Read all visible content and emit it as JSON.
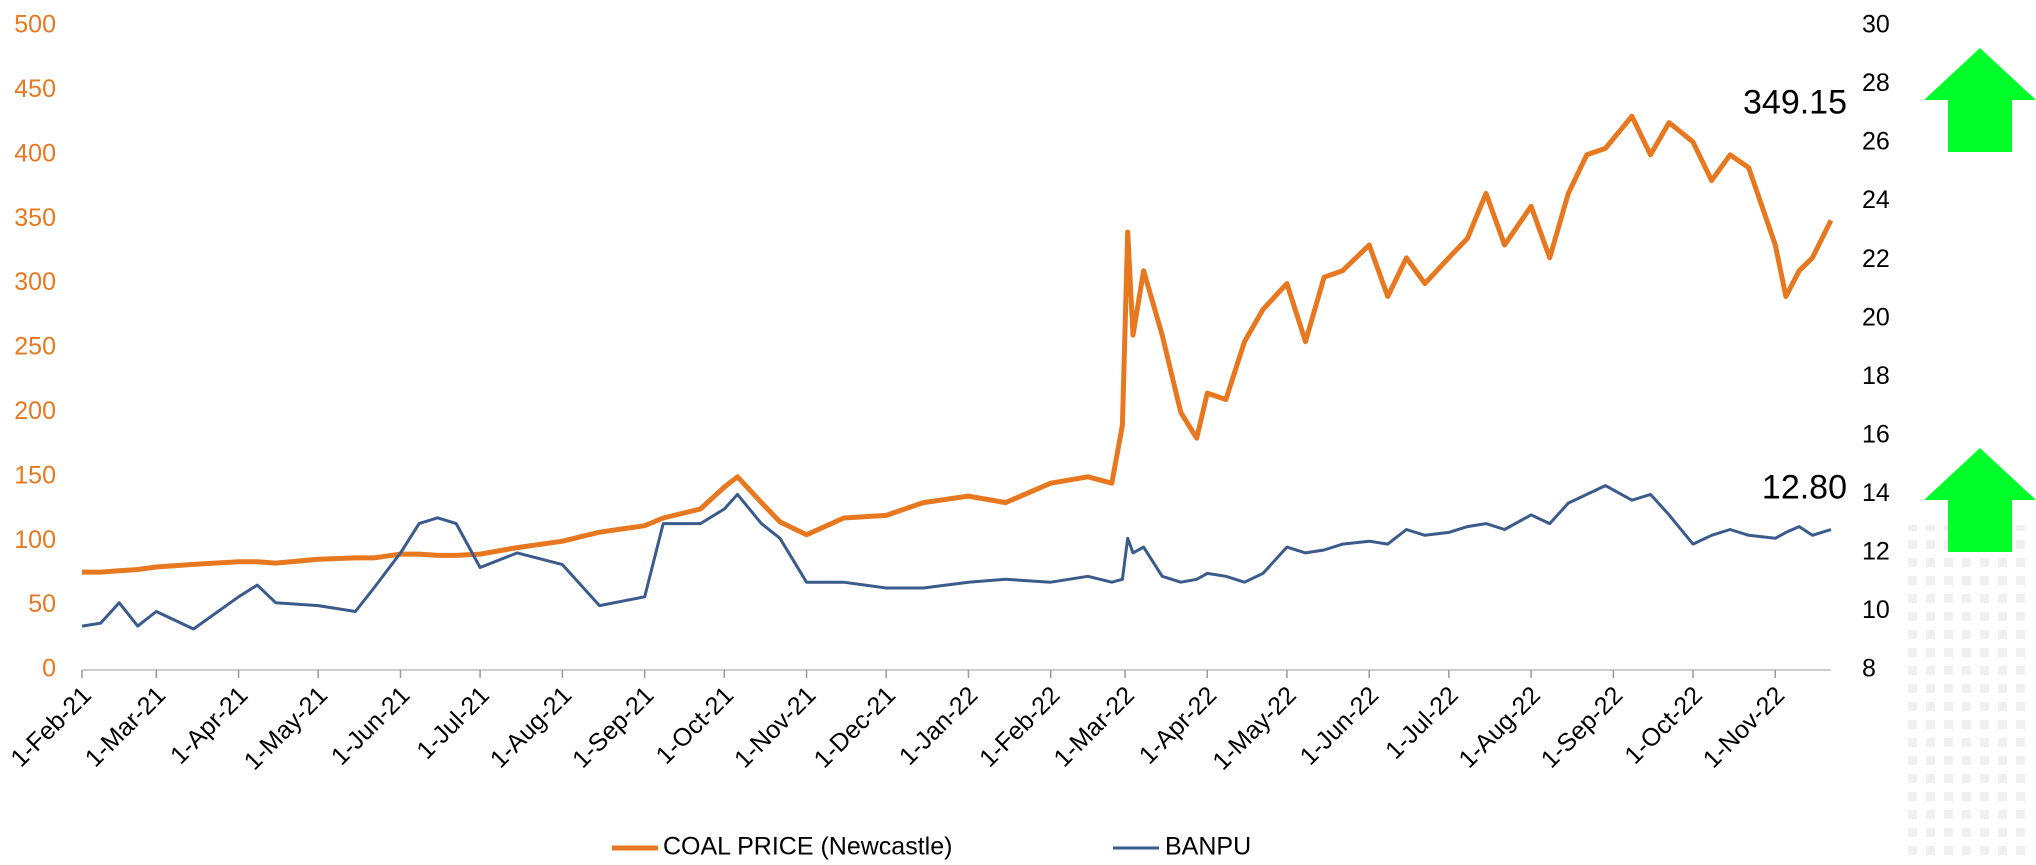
{
  "chart_data": {
    "type": "line",
    "x": [
      "2021-02-01",
      "2021-02-08",
      "2021-02-15",
      "2021-02-22",
      "2021-03-01",
      "2021-03-15",
      "2021-04-01",
      "2021-04-08",
      "2021-04-15",
      "2021-05-01",
      "2021-05-15",
      "2021-05-22",
      "2021-06-01",
      "2021-06-08",
      "2021-06-15",
      "2021-06-22",
      "2021-07-01",
      "2021-07-15",
      "2021-08-01",
      "2021-08-15",
      "2021-09-01",
      "2021-09-08",
      "2021-09-22",
      "2021-10-01",
      "2021-10-06",
      "2021-10-15",
      "2021-10-22",
      "2021-11-01",
      "2021-11-15",
      "2021-12-01",
      "2021-12-15",
      "2022-01-01",
      "2022-01-15",
      "2022-02-01",
      "2022-02-15",
      "2022-02-24",
      "2022-02-28",
      "2022-03-02",
      "2022-03-04",
      "2022-03-08",
      "2022-03-15",
      "2022-03-22",
      "2022-03-28",
      "2022-04-01",
      "2022-04-08",
      "2022-04-15",
      "2022-04-22",
      "2022-05-01",
      "2022-05-08",
      "2022-05-15",
      "2022-05-22",
      "2022-06-01",
      "2022-06-08",
      "2022-06-15",
      "2022-06-22",
      "2022-07-01",
      "2022-07-08",
      "2022-07-15",
      "2022-07-22",
      "2022-08-01",
      "2022-08-08",
      "2022-08-15",
      "2022-08-22",
      "2022-08-29",
      "2022-09-08",
      "2022-09-15",
      "2022-09-22",
      "2022-10-01",
      "2022-10-08",
      "2022-10-15",
      "2022-10-22",
      "2022-11-01",
      "2022-11-05",
      "2022-11-10",
      "2022-11-15",
      "2022-11-22"
    ],
    "series": [
      {
        "name": "COAL PRICE (Newcastle)",
        "color": "#e8781f",
        "axis": "y",
        "values": [
          76,
          76,
          77,
          78,
          80,
          82,
          84,
          84,
          83,
          86,
          87,
          87,
          90,
          90,
          89,
          89,
          90,
          95,
          100,
          107,
          112,
          118,
          125,
          142,
          150,
          130,
          115,
          105,
          118,
          120,
          130,
          135,
          130,
          145,
          150,
          145,
          190,
          340,
          260,
          310,
          260,
          200,
          180,
          215,
          210,
          255,
          280,
          300,
          255,
          305,
          310,
          330,
          290,
          320,
          300,
          320,
          335,
          370,
          330,
          360,
          320,
          370,
          400,
          405,
          430,
          400,
          425,
          410,
          380,
          400,
          390,
          330,
          290,
          310,
          320,
          349.15
        ],
        "value_labels": [
          null,
          null,
          null,
          null,
          null,
          null,
          null,
          null,
          null,
          null,
          null,
          null,
          null,
          null,
          null,
          null,
          null,
          null,
          null,
          null,
          null,
          null,
          null,
          null,
          null,
          null,
          null,
          null,
          null,
          null,
          null,
          null,
          null,
          null,
          null,
          null,
          null,
          null,
          null,
          null,
          null,
          null,
          null,
          null,
          null,
          null,
          null,
          null,
          null,
          null,
          null,
          null,
          null,
          null,
          null,
          null,
          null,
          null,
          null,
          null,
          null,
          null,
          null,
          null,
          null,
          null,
          null,
          null,
          null,
          null,
          null,
          null,
          null,
          null,
          null,
          "349.15"
        ]
      },
      {
        "name": "BANPU",
        "color": "#3b5b8c",
        "axis": "y2",
        "values": [
          9.5,
          9.6,
          10.3,
          9.5,
          10.0,
          9.4,
          10.5,
          10.9,
          10.3,
          10.2,
          10.0,
          10.8,
          12.0,
          13.0,
          13.2,
          13.0,
          11.5,
          12.0,
          11.6,
          10.2,
          10.5,
          13.0,
          13.0,
          13.5,
          14.0,
          13.0,
          12.5,
          11.0,
          11.0,
          10.8,
          10.8,
          11.0,
          11.1,
          11.0,
          11.2,
          11.0,
          11.1,
          12.5,
          12.0,
          12.2,
          11.2,
          11.0,
          11.1,
          11.3,
          11.2,
          11.0,
          11.3,
          12.2,
          12.0,
          12.1,
          12.3,
          12.4,
          12.3,
          12.8,
          12.6,
          12.7,
          12.9,
          13.0,
          12.8,
          13.3,
          13.0,
          13.7,
          14.0,
          14.3,
          13.8,
          14.0,
          13.3,
          12.3,
          12.6,
          12.8,
          12.6,
          12.5,
          12.7,
          12.9,
          12.6,
          12.8
        ],
        "value_labels": [
          null,
          null,
          null,
          null,
          null,
          null,
          null,
          null,
          null,
          null,
          null,
          null,
          null,
          null,
          null,
          null,
          null,
          null,
          null,
          null,
          null,
          null,
          null,
          null,
          null,
          null,
          null,
          null,
          null,
          null,
          null,
          null,
          null,
          null,
          null,
          null,
          null,
          null,
          null,
          null,
          null,
          null,
          null,
          null,
          null,
          null,
          null,
          null,
          null,
          null,
          null,
          null,
          null,
          null,
          null,
          null,
          null,
          null,
          null,
          null,
          null,
          null,
          null,
          null,
          null,
          null,
          null,
          null,
          null,
          null,
          null,
          null,
          null,
          null,
          null,
          "12.80"
        ]
      }
    ],
    "xlim": [
      "2021-02-01",
      "2022-11-22"
    ],
    "xticks": [
      {
        "value": "2021-02-01",
        "label": "1-Feb-21"
      },
      {
        "value": "2021-03-01",
        "label": "1-Mar-21"
      },
      {
        "value": "2021-04-01",
        "label": "1-Apr-21"
      },
      {
        "value": "2021-05-01",
        "label": "1-May-21"
      },
      {
        "value": "2021-06-01",
        "label": "1-Jun-21"
      },
      {
        "value": "2021-07-01",
        "label": "1-Jul-21"
      },
      {
        "value": "2021-08-01",
        "label": "1-Aug-21"
      },
      {
        "value": "2021-09-01",
        "label": "1-Sep-21"
      },
      {
        "value": "2021-10-01",
        "label": "1-Oct-21"
      },
      {
        "value": "2021-11-01",
        "label": "1-Nov-21"
      },
      {
        "value": "2021-12-01",
        "label": "1-Dec-21"
      },
      {
        "value": "2022-01-01",
        "label": "1-Jan-22"
      },
      {
        "value": "2022-02-01",
        "label": "1-Feb-22"
      },
      {
        "value": "2022-03-01",
        "label": "1-Mar-22"
      },
      {
        "value": "2022-04-01",
        "label": "1-Apr-22"
      },
      {
        "value": "2022-05-01",
        "label": "1-May-22"
      },
      {
        "value": "2022-06-01",
        "label": "1-Jun-22"
      },
      {
        "value": "2022-07-01",
        "label": "1-Jul-22"
      },
      {
        "value": "2022-08-01",
        "label": "1-Aug-22"
      },
      {
        "value": "2022-09-01",
        "label": "1-Sep-22"
      },
      {
        "value": "2022-10-01",
        "label": "1-Oct-22"
      },
      {
        "value": "2022-11-01",
        "label": "1-Nov-22"
      }
    ],
    "ylim": [
      0,
      500
    ],
    "yticks": [
      0,
      50,
      100,
      150,
      200,
      250,
      300,
      350,
      400,
      450,
      500
    ],
    "ytick_color": "#e8781f",
    "y2lim": [
      8,
      30
    ],
    "y2ticks": [
      8,
      10,
      12,
      14,
      16,
      18,
      20,
      22,
      24,
      26,
      28,
      30
    ],
    "legend": "bottom"
  }
}
